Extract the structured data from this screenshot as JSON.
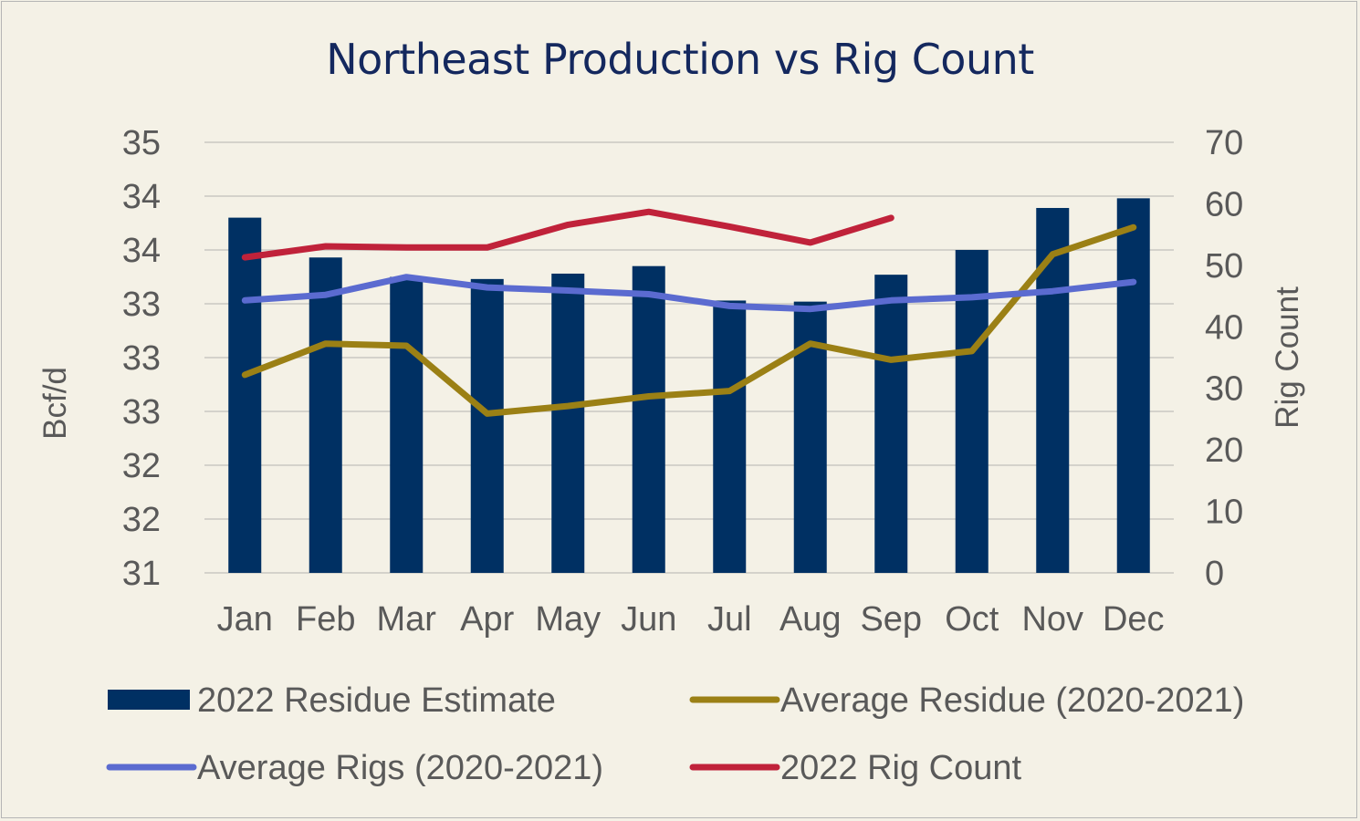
{
  "chart_data": {
    "type": "bar",
    "title": "Northeast Production vs Rig Count",
    "categories": [
      "Jan",
      "Feb",
      "Mar",
      "Apr",
      "May",
      "Jun",
      "Jul",
      "Aug",
      "Sep",
      "Oct",
      "Nov",
      "Dec"
    ],
    "y_left": {
      "label": "Bcf/d",
      "range": [
        31,
        35
      ],
      "ticks": [
        31,
        31.5,
        32,
        32.5,
        33,
        33.5,
        34,
        34.5,
        35
      ],
      "tick_labels": [
        "31",
        "32",
        "32",
        "33",
        "33",
        "33",
        "34",
        "34",
        "35"
      ]
    },
    "y_right": {
      "label": "Rig Count",
      "range": [
        0,
        70
      ],
      "ticks": [
        0,
        10,
        20,
        30,
        40,
        50,
        60,
        70
      ],
      "tick_labels": [
        "0",
        "10",
        "20",
        "30",
        "40",
        "50",
        "60",
        "70"
      ]
    },
    "grid": true,
    "legend_position": "bottom",
    "series": [
      {
        "name": "2022 Residue Estimate",
        "kind": "bar",
        "axis": "left",
        "color": "#003063",
        "values": [
          34.3,
          33.93,
          33.75,
          33.73,
          33.78,
          33.85,
          33.53,
          33.52,
          33.77,
          34.0,
          34.39,
          34.48
        ]
      },
      {
        "name": "Average Residue (2020-2021)",
        "kind": "line",
        "axis": "left",
        "color": "#9b8015",
        "values": [
          32.84,
          33.13,
          33.11,
          32.48,
          32.55,
          32.64,
          32.69,
          33.13,
          32.98,
          33.06,
          33.96,
          34.21
        ]
      },
      {
        "name": "Average Rigs (2020-2021)",
        "kind": "line",
        "axis": "right",
        "color": "#5b6bd0",
        "values": [
          44.3,
          45.2,
          48.1,
          46.4,
          45.9,
          45.3,
          43.4,
          42.9,
          44.3,
          44.8,
          45.8,
          47.3
        ]
      },
      {
        "name": "2022 Rig Count",
        "kind": "line",
        "axis": "right",
        "color": "#c0223a",
        "values": [
          51.3,
          53.1,
          52.9,
          52.9,
          56.6,
          58.7,
          56.3,
          53.7,
          57.7,
          null,
          null,
          null
        ]
      }
    ]
  }
}
